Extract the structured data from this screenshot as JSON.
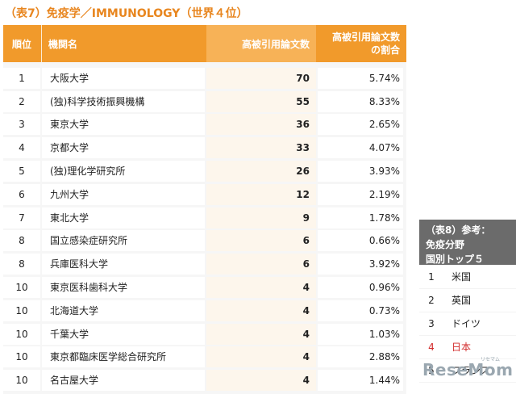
{
  "title": "（表7）免疫学／IMMUNOLOGY（世界４位）",
  "main_table": {
    "headers": {
      "rank": "順位",
      "institution": "機関名",
      "count": "高被引用論文数",
      "ratio_line1": "高被引用論文数",
      "ratio_line2": "の割合"
    },
    "rows": [
      {
        "rank": "1",
        "name": "大阪大学",
        "count": "70",
        "ratio": "5.74%"
      },
      {
        "rank": "2",
        "name": "(独)科学技術振興機構",
        "count": "55",
        "ratio": "8.33%"
      },
      {
        "rank": "3",
        "name": "東京大学",
        "count": "36",
        "ratio": "2.65%"
      },
      {
        "rank": "4",
        "name": "京都大学",
        "count": "33",
        "ratio": "4.07%"
      },
      {
        "rank": "5",
        "name": "(独)理化学研究所",
        "count": "26",
        "ratio": "3.93%"
      },
      {
        "rank": "6",
        "name": "九州大学",
        "count": "12",
        "ratio": "2.19%"
      },
      {
        "rank": "7",
        "name": "東北大学",
        "count": "9",
        "ratio": "1.78%"
      },
      {
        "rank": "8",
        "name": "国立感染症研究所",
        "count": "6",
        "ratio": "0.66%"
      },
      {
        "rank": "8",
        "name": "兵庫医科大学",
        "count": "6",
        "ratio": "3.92%"
      },
      {
        "rank": "10",
        "name": "東京医科歯科大学",
        "count": "4",
        "ratio": "0.96%"
      },
      {
        "rank": "10",
        "name": "北海道大学",
        "count": "4",
        "ratio": "0.73%"
      },
      {
        "rank": "10",
        "name": "千葉大学",
        "count": "4",
        "ratio": "1.03%"
      },
      {
        "rank": "10",
        "name": "東京都臨床医学総合研究所",
        "count": "4",
        "ratio": "2.88%"
      },
      {
        "rank": "10",
        "name": "名古屋大学",
        "count": "4",
        "ratio": "1.44%"
      }
    ]
  },
  "side_table": {
    "header_line1": "（表8）参考：",
    "header_line2": "免疫分野",
    "header_line3": "国別トップ５",
    "rows": [
      {
        "rank": "1",
        "country": "米国"
      },
      {
        "rank": "2",
        "country": "英国"
      },
      {
        "rank": "3",
        "country": "ドイツ"
      },
      {
        "rank": "4",
        "country": "日本"
      },
      {
        "rank": "5",
        "country": "フランス"
      }
    ]
  },
  "logo": {
    "text": "ReseMom",
    "sub": "リセマム"
  },
  "colors": {
    "accent": "#f19a2b",
    "title": "#e8861f",
    "side_header": "#6b6b6b",
    "japan": "#d22b2b"
  }
}
